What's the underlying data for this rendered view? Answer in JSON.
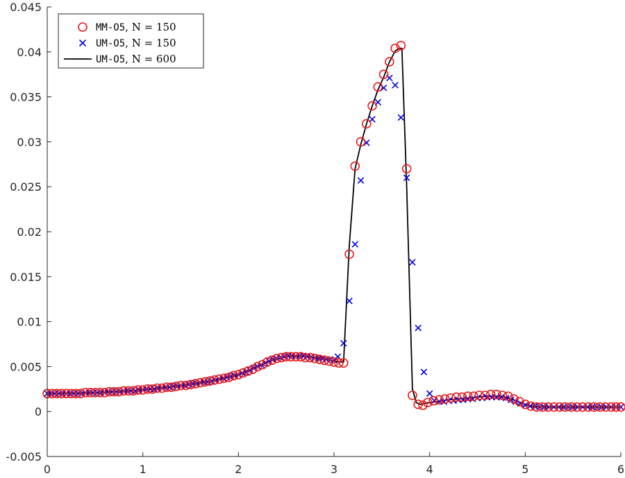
{
  "chart_data": {
    "type": "line",
    "title": "",
    "xlabel": "",
    "ylabel": "",
    "xlim": [
      0,
      6
    ],
    "ylim": [
      -0.005,
      0.045
    ],
    "grid": false,
    "legend_position": "top-left",
    "x_ticks": [
      {
        "value": 0,
        "label": "0"
      },
      {
        "value": 1,
        "label": "1"
      },
      {
        "value": 2,
        "label": "2"
      },
      {
        "value": 3,
        "label": "3"
      },
      {
        "value": 4,
        "label": "4"
      },
      {
        "value": 5,
        "label": "5"
      },
      {
        "value": 6,
        "label": "6"
      }
    ],
    "y_ticks": [
      {
        "value": -0.005,
        "label": "-0.005"
      },
      {
        "value": 0,
        "label": "0"
      },
      {
        "value": 0.005,
        "label": "0.005"
      },
      {
        "value": 0.01,
        "label": "0.01"
      },
      {
        "value": 0.015,
        "label": "0.015"
      },
      {
        "value": 0.02,
        "label": "0.02"
      },
      {
        "value": 0.025,
        "label": "0.025"
      },
      {
        "value": 0.03,
        "label": "0.03"
      },
      {
        "value": 0.035,
        "label": "0.035"
      },
      {
        "value": 0.04,
        "label": "0.04"
      },
      {
        "value": 0.045,
        "label": "0.045"
      }
    ],
    "legend": [
      {
        "code": "MM-O5",
        "math": ", N = 150",
        "marker": "circle",
        "color": "#e41a1c"
      },
      {
        "code": "UM-O5",
        "math": ", N = 150",
        "marker": "cross",
        "color": "#0000dd"
      },
      {
        "code": "UM-O5",
        "math": ", N = 600",
        "marker": "line",
        "color": "#000000"
      }
    ],
    "series": [
      {
        "name": "MM-O5, N = 150",
        "marker": "circle",
        "color": "#e41a1c",
        "points": [
          [
            0.0,
            0.002
          ],
          [
            0.05,
            0.002
          ],
          [
            0.1,
            0.002
          ],
          [
            0.15,
            0.002
          ],
          [
            0.2,
            0.002
          ],
          [
            0.25,
            0.002
          ],
          [
            0.3,
            0.002
          ],
          [
            0.35,
            0.002
          ],
          [
            0.4,
            0.0021
          ],
          [
            0.45,
            0.0021
          ],
          [
            0.5,
            0.0021
          ],
          [
            0.55,
            0.0021
          ],
          [
            0.6,
            0.0021
          ],
          [
            0.65,
            0.0022
          ],
          [
            0.7,
            0.0022
          ],
          [
            0.75,
            0.0022
          ],
          [
            0.8,
            0.0023
          ],
          [
            0.85,
            0.0023
          ],
          [
            0.9,
            0.0023
          ],
          [
            0.95,
            0.0024
          ],
          [
            1.0,
            0.0024
          ],
          [
            1.05,
            0.0025
          ],
          [
            1.1,
            0.0025
          ],
          [
            1.15,
            0.0026
          ],
          [
            1.2,
            0.0026
          ],
          [
            1.25,
            0.0027
          ],
          [
            1.3,
            0.0027
          ],
          [
            1.35,
            0.0028
          ],
          [
            1.4,
            0.0029
          ],
          [
            1.45,
            0.0029
          ],
          [
            1.5,
            0.003
          ],
          [
            1.55,
            0.0031
          ],
          [
            1.6,
            0.0032
          ],
          [
            1.65,
            0.0033
          ],
          [
            1.7,
            0.0034
          ],
          [
            1.75,
            0.0035
          ],
          [
            1.8,
            0.0036
          ],
          [
            1.85,
            0.0037
          ],
          [
            1.9,
            0.0038
          ],
          [
            1.95,
            0.004
          ],
          [
            2.0,
            0.0041
          ],
          [
            2.05,
            0.0043
          ],
          [
            2.1,
            0.0045
          ],
          [
            2.15,
            0.0047
          ],
          [
            2.2,
            0.005
          ],
          [
            2.25,
            0.0052
          ],
          [
            2.3,
            0.0055
          ],
          [
            2.35,
            0.0057
          ],
          [
            2.4,
            0.0059
          ],
          [
            2.45,
            0.006
          ],
          [
            2.5,
            0.0061
          ],
          [
            2.55,
            0.0061
          ],
          [
            2.6,
            0.0061
          ],
          [
            2.65,
            0.0061
          ],
          [
            2.7,
            0.006
          ],
          [
            2.75,
            0.006
          ],
          [
            2.8,
            0.0059
          ],
          [
            2.85,
            0.0058
          ],
          [
            2.9,
            0.0057
          ],
          [
            2.95,
            0.0056
          ],
          [
            3.0,
            0.0055
          ],
          [
            3.05,
            0.0054
          ],
          [
            3.1,
            0.0054
          ],
          [
            3.16,
            0.0175
          ],
          [
            3.22,
            0.0273
          ],
          [
            3.28,
            0.03
          ],
          [
            3.34,
            0.032
          ],
          [
            3.4,
            0.034
          ],
          [
            3.46,
            0.0361
          ],
          [
            3.52,
            0.0375
          ],
          [
            3.58,
            0.0389
          ],
          [
            3.64,
            0.0404
          ],
          [
            3.7,
            0.0407
          ],
          [
            3.76,
            0.027
          ],
          [
            3.82,
            0.0018
          ],
          [
            3.88,
            0.0008
          ],
          [
            3.93,
            0.0007
          ],
          [
            3.98,
            0.001
          ],
          [
            4.04,
            0.0012
          ],
          [
            4.1,
            0.0013
          ],
          [
            4.16,
            0.0014
          ],
          [
            4.22,
            0.0015
          ],
          [
            4.28,
            0.0016
          ],
          [
            4.34,
            0.0016
          ],
          [
            4.4,
            0.0017
          ],
          [
            4.46,
            0.0017
          ],
          [
            4.52,
            0.0018
          ],
          [
            4.58,
            0.0018
          ],
          [
            4.64,
            0.0019
          ],
          [
            4.7,
            0.0019
          ],
          [
            4.76,
            0.0018
          ],
          [
            4.82,
            0.0017
          ],
          [
            4.88,
            0.0014
          ],
          [
            4.94,
            0.0011
          ],
          [
            5.0,
            0.0008
          ],
          [
            5.06,
            0.0006
          ],
          [
            5.12,
            0.0005
          ],
          [
            5.18,
            0.0005
          ],
          [
            5.24,
            0.0005
          ],
          [
            5.3,
            0.0005
          ],
          [
            5.36,
            0.0005
          ],
          [
            5.42,
            0.0005
          ],
          [
            5.48,
            0.0005
          ],
          [
            5.54,
            0.0005
          ],
          [
            5.6,
            0.0005
          ],
          [
            5.66,
            0.0005
          ],
          [
            5.72,
            0.0005
          ],
          [
            5.78,
            0.0005
          ],
          [
            5.84,
            0.0005
          ],
          [
            5.9,
            0.0005
          ],
          [
            5.95,
            0.0005
          ],
          [
            6.0,
            0.0005
          ]
        ]
      },
      {
        "name": "UM-O5, N = 150",
        "marker": "cross",
        "color": "#0000dd",
        "points": [
          [
            0.0,
            0.002
          ],
          [
            0.04,
            0.002
          ],
          [
            0.08,
            0.002
          ],
          [
            0.12,
            0.002
          ],
          [
            0.16,
            0.002
          ],
          [
            0.2,
            0.002
          ],
          [
            0.24,
            0.002
          ],
          [
            0.28,
            0.002
          ],
          [
            0.32,
            0.002
          ],
          [
            0.36,
            0.002
          ],
          [
            0.4,
            0.0021
          ],
          [
            0.44,
            0.0021
          ],
          [
            0.48,
            0.0021
          ],
          [
            0.52,
            0.0021
          ],
          [
            0.56,
            0.0021
          ],
          [
            0.6,
            0.0021
          ],
          [
            0.64,
            0.0022
          ],
          [
            0.68,
            0.0022
          ],
          [
            0.72,
            0.0022
          ],
          [
            0.76,
            0.0022
          ],
          [
            0.8,
            0.0023
          ],
          [
            0.84,
            0.0023
          ],
          [
            0.88,
            0.0023
          ],
          [
            0.92,
            0.0023
          ],
          [
            0.96,
            0.0024
          ],
          [
            1.0,
            0.0024
          ],
          [
            1.04,
            0.0025
          ],
          [
            1.08,
            0.0025
          ],
          [
            1.12,
            0.0025
          ],
          [
            1.16,
            0.0026
          ],
          [
            1.2,
            0.0026
          ],
          [
            1.24,
            0.0027
          ],
          [
            1.28,
            0.0027
          ],
          [
            1.32,
            0.0028
          ],
          [
            1.36,
            0.0028
          ],
          [
            1.4,
            0.0029
          ],
          [
            1.44,
            0.0029
          ],
          [
            1.48,
            0.003
          ],
          [
            1.52,
            0.0031
          ],
          [
            1.56,
            0.0031
          ],
          [
            1.6,
            0.0032
          ],
          [
            1.64,
            0.0033
          ],
          [
            1.68,
            0.0033
          ],
          [
            1.72,
            0.0034
          ],
          [
            1.76,
            0.0035
          ],
          [
            1.8,
            0.0036
          ],
          [
            1.84,
            0.0037
          ],
          [
            1.88,
            0.0038
          ],
          [
            1.92,
            0.0039
          ],
          [
            1.96,
            0.004
          ],
          [
            2.0,
            0.0041
          ],
          [
            2.04,
            0.0043
          ],
          [
            2.08,
            0.0044
          ],
          [
            2.12,
            0.0046
          ],
          [
            2.16,
            0.0048
          ],
          [
            2.2,
            0.005
          ],
          [
            2.24,
            0.0052
          ],
          [
            2.28,
            0.0054
          ],
          [
            2.32,
            0.0056
          ],
          [
            2.36,
            0.0058
          ],
          [
            2.4,
            0.0059
          ],
          [
            2.44,
            0.006
          ],
          [
            2.48,
            0.0061
          ],
          [
            2.52,
            0.0062
          ],
          [
            2.56,
            0.0062
          ],
          [
            2.6,
            0.0062
          ],
          [
            2.64,
            0.0062
          ],
          [
            2.68,
            0.0062
          ],
          [
            2.72,
            0.0061
          ],
          [
            2.76,
            0.0061
          ],
          [
            2.8,
            0.006
          ],
          [
            2.84,
            0.0059
          ],
          [
            2.88,
            0.0059
          ],
          [
            2.92,
            0.0058
          ],
          [
            2.96,
            0.0058
          ],
          [
            3.0,
            0.0057
          ],
          [
            3.04,
            0.0061
          ],
          [
            3.1,
            0.0076
          ],
          [
            3.16,
            0.0123
          ],
          [
            3.22,
            0.0186
          ],
          [
            3.28,
            0.0257
          ],
          [
            3.34,
            0.0299
          ],
          [
            3.4,
            0.0325
          ],
          [
            3.46,
            0.0344
          ],
          [
            3.52,
            0.036
          ],
          [
            3.58,
            0.0371
          ],
          [
            3.64,
            0.0363
          ],
          [
            3.7,
            0.0327
          ],
          [
            3.76,
            0.026
          ],
          [
            3.82,
            0.0166
          ],
          [
            3.88,
            0.0093
          ],
          [
            3.94,
            0.0044
          ],
          [
            4.0,
            0.002
          ],
          [
            4.05,
            0.0012
          ],
          [
            4.1,
            0.0011
          ],
          [
            4.15,
            0.0011
          ],
          [
            4.2,
            0.0012
          ],
          [
            4.25,
            0.0012
          ],
          [
            4.3,
            0.0013
          ],
          [
            4.35,
            0.0013
          ],
          [
            4.4,
            0.0014
          ],
          [
            4.45,
            0.0014
          ],
          [
            4.5,
            0.0015
          ],
          [
            4.55,
            0.0015
          ],
          [
            4.6,
            0.0016
          ],
          [
            4.65,
            0.0016
          ],
          [
            4.7,
            0.0016
          ],
          [
            4.75,
            0.0016
          ],
          [
            4.8,
            0.0015
          ],
          [
            4.85,
            0.0013
          ],
          [
            4.9,
            0.0011
          ],
          [
            4.95,
            0.0009
          ],
          [
            5.0,
            0.0007
          ],
          [
            5.05,
            0.0006
          ],
          [
            5.1,
            0.0006
          ],
          [
            5.15,
            0.0005
          ],
          [
            5.2,
            0.0005
          ],
          [
            5.25,
            0.0005
          ],
          [
            5.3,
            0.0005
          ],
          [
            5.35,
            0.0005
          ],
          [
            5.4,
            0.0005
          ],
          [
            5.45,
            0.0005
          ],
          [
            5.5,
            0.0005
          ],
          [
            5.55,
            0.0005
          ],
          [
            5.6,
            0.0005
          ],
          [
            5.65,
            0.0005
          ],
          [
            5.7,
            0.0005
          ],
          [
            5.75,
            0.0005
          ],
          [
            5.8,
            0.0005
          ],
          [
            5.85,
            0.0005
          ],
          [
            5.9,
            0.0005
          ],
          [
            5.95,
            0.0005
          ],
          [
            6.0,
            0.0005
          ]
        ]
      },
      {
        "name": "UM-O5, N = 600",
        "marker": "line",
        "color": "#000000",
        "points": [
          [
            0.0,
            0.002
          ],
          [
            0.5,
            0.0021
          ],
          [
            1.0,
            0.0024
          ],
          [
            1.5,
            0.003
          ],
          [
            1.8,
            0.0036
          ],
          [
            2.0,
            0.0041
          ],
          [
            2.2,
            0.005
          ],
          [
            2.35,
            0.0057
          ],
          [
            2.5,
            0.0061
          ],
          [
            2.6,
            0.0062
          ],
          [
            2.7,
            0.0061
          ],
          [
            2.8,
            0.006
          ],
          [
            2.9,
            0.0058
          ],
          [
            3.0,
            0.0056
          ],
          [
            3.1,
            0.0055
          ],
          [
            3.16,
            0.0185
          ],
          [
            3.22,
            0.027
          ],
          [
            3.28,
            0.0297
          ],
          [
            3.34,
            0.032
          ],
          [
            3.4,
            0.034
          ],
          [
            3.46,
            0.0358
          ],
          [
            3.52,
            0.0372
          ],
          [
            3.58,
            0.0389
          ],
          [
            3.64,
            0.0401
          ],
          [
            3.68,
            0.0404
          ],
          [
            3.71,
            0.0404
          ],
          [
            3.76,
            0.025
          ],
          [
            3.82,
            0.0025
          ],
          [
            3.86,
            0.001
          ],
          [
            3.9,
            0.0008
          ],
          [
            3.95,
            0.0009
          ],
          [
            4.0,
            0.001
          ],
          [
            4.2,
            0.0013
          ],
          [
            4.4,
            0.0015
          ],
          [
            4.6,
            0.0017
          ],
          [
            4.75,
            0.0017
          ],
          [
            4.85,
            0.0014
          ],
          [
            4.95,
            0.001
          ],
          [
            5.05,
            0.0006
          ],
          [
            5.2,
            0.0005
          ],
          [
            5.5,
            0.0005
          ],
          [
            6.0,
            0.0005
          ]
        ]
      }
    ]
  }
}
